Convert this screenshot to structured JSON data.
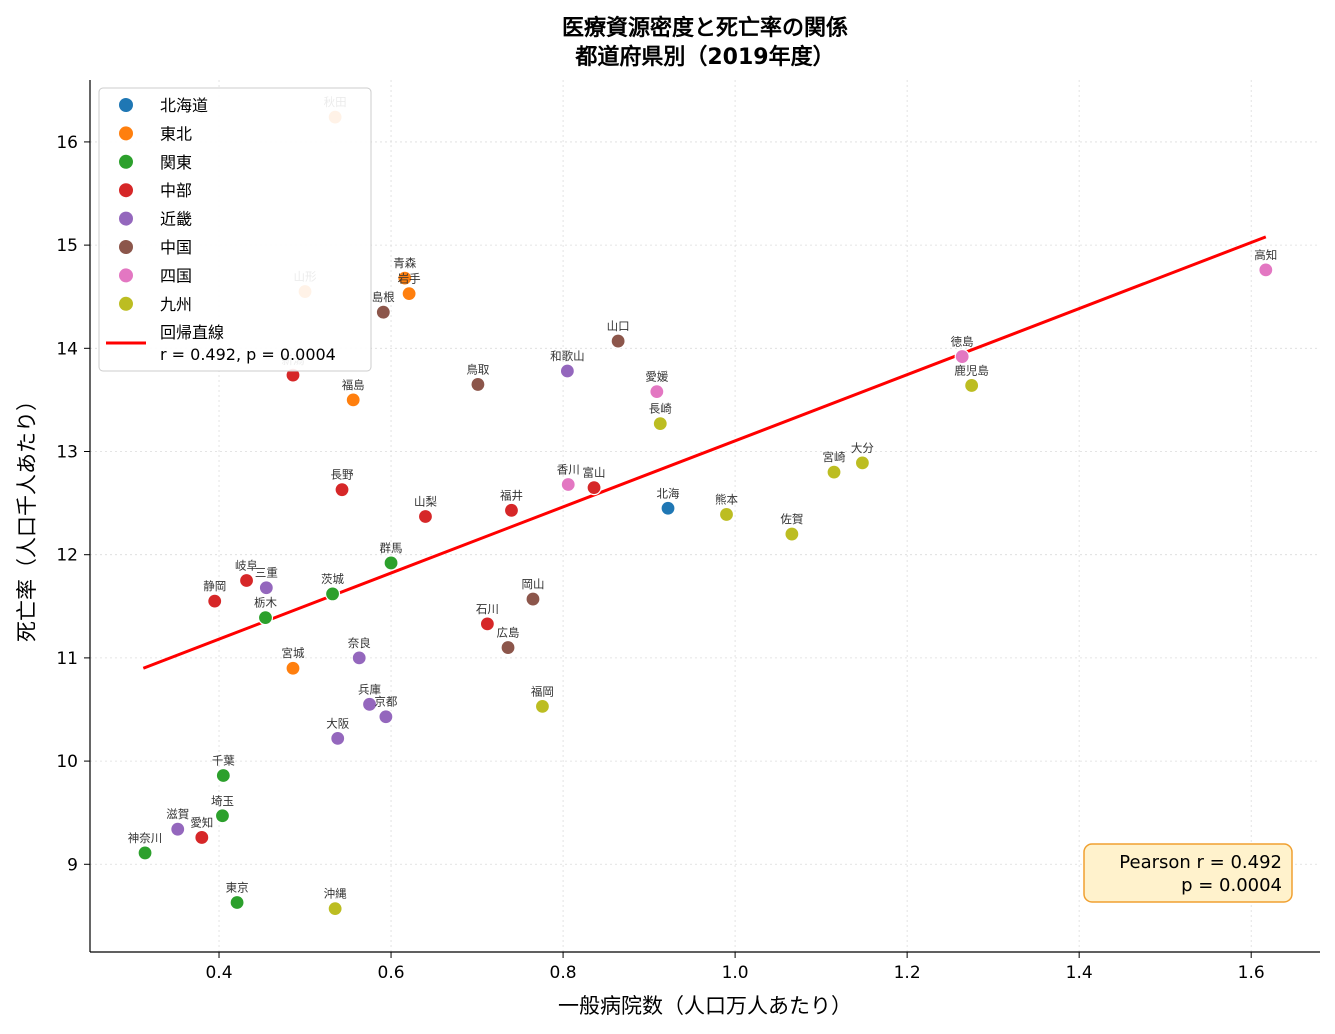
{
  "chart_data": {
    "type": "scatter",
    "title": [
      "医療資源密度と死亡率の関係",
      "都道府県別（2019年度）"
    ],
    "xlabel": "一般病院数（人口万人あたり）",
    "ylabel": "死亡率（人口千人あたり）",
    "xlim": [
      0.25,
      1.68
    ],
    "ylim": [
      8.15,
      16.6
    ],
    "xticks": [
      0.4,
      0.6,
      0.8,
      1.0,
      1.2,
      1.4,
      1.6
    ],
    "xtick_labels": [
      "0.4",
      "0.6",
      "0.8",
      "1.0",
      "1.2",
      "1.4",
      "1.6"
    ],
    "yticks": [
      9,
      10,
      11,
      12,
      13,
      14,
      15,
      16
    ],
    "ytick_labels": [
      "9",
      "10",
      "11",
      "12",
      "13",
      "14",
      "15",
      "16"
    ],
    "grid": true,
    "legend_position": "top-left",
    "colors": {
      "北海道": "#1f77b4",
      "東北": "#ff7f0e",
      "関東": "#2ca02c",
      "中部": "#d62728",
      "近畿": "#9467bd",
      "中国": "#8c564b",
      "四国": "#e377c2",
      "九州": "#bcbd22",
      "regression": "#ff0000"
    },
    "series": [
      {
        "name": "北海道",
        "points": [
          {
            "label": "北海",
            "x": 0.922,
            "y": 12.45
          }
        ]
      },
      {
        "name": "東北",
        "points": [
          {
            "label": "青森",
            "x": 0.616,
            "y": 14.68
          },
          {
            "label": "岩手",
            "x": 0.621,
            "y": 14.53
          },
          {
            "label": "宮城",
            "x": 0.486,
            "y": 10.9
          },
          {
            "label": "秋田",
            "x": 0.535,
            "y": 16.24
          },
          {
            "label": "山形",
            "x": 0.5,
            "y": 14.55
          },
          {
            "label": "福島",
            "x": 0.556,
            "y": 13.5
          }
        ]
      },
      {
        "name": "関東",
        "points": [
          {
            "label": "茨城",
            "x": 0.532,
            "y": 11.62
          },
          {
            "label": "栃木",
            "x": 0.454,
            "y": 11.39
          },
          {
            "label": "群馬",
            "x": 0.6,
            "y": 11.92
          },
          {
            "label": "埼玉",
            "x": 0.404,
            "y": 9.47
          },
          {
            "label": "千葉",
            "x": 0.405,
            "y": 9.86
          },
          {
            "label": "東京",
            "x": 0.421,
            "y": 8.63
          },
          {
            "label": "神奈川",
            "x": 0.314,
            "y": 9.11
          }
        ]
      },
      {
        "name": "中部",
        "points": [
          {
            "label": "新潟",
            "x": 0.486,
            "y": 13.74
          },
          {
            "label": "富山",
            "x": 0.836,
            "y": 12.65
          },
          {
            "label": "石川",
            "x": 0.712,
            "y": 11.33
          },
          {
            "label": "福井",
            "x": 0.74,
            "y": 12.43
          },
          {
            "label": "山梨",
            "x": 0.64,
            "y": 12.37
          },
          {
            "label": "長野",
            "x": 0.543,
            "y": 12.63
          },
          {
            "label": "岐阜",
            "x": 0.432,
            "y": 11.75
          },
          {
            "label": "静岡",
            "x": 0.395,
            "y": 11.55
          },
          {
            "label": "愛知",
            "x": 0.38,
            "y": 9.26
          }
        ]
      },
      {
        "name": "近畿",
        "points": [
          {
            "label": "三重",
            "x": 0.455,
            "y": 11.68
          },
          {
            "label": "滋賀",
            "x": 0.352,
            "y": 9.34
          },
          {
            "label": "京都",
            "x": 0.594,
            "y": 10.43
          },
          {
            "label": "大阪",
            "x": 0.538,
            "y": 10.22
          },
          {
            "label": "兵庫",
            "x": 0.575,
            "y": 10.55
          },
          {
            "label": "奈良",
            "x": 0.563,
            "y": 11.0
          },
          {
            "label": "和歌山",
            "x": 0.805,
            "y": 13.78
          }
        ]
      },
      {
        "name": "中国",
        "points": [
          {
            "label": "鳥取",
            "x": 0.701,
            "y": 13.65
          },
          {
            "label": "島根",
            "x": 0.591,
            "y": 14.35
          },
          {
            "label": "岡山",
            "x": 0.765,
            "y": 11.57
          },
          {
            "label": "広島",
            "x": 0.736,
            "y": 11.1
          },
          {
            "label": "山口",
            "x": 0.864,
            "y": 14.07
          }
        ]
      },
      {
        "name": "四国",
        "points": [
          {
            "label": "徳島",
            "x": 1.264,
            "y": 13.92
          },
          {
            "label": "香川",
            "x": 0.806,
            "y": 12.68
          },
          {
            "label": "愛媛",
            "x": 0.909,
            "y": 13.58
          },
          {
            "label": "高知",
            "x": 1.617,
            "y": 14.76
          }
        ]
      },
      {
        "name": "九州",
        "points": [
          {
            "label": "福岡",
            "x": 0.776,
            "y": 10.53
          },
          {
            "label": "佐賀",
            "x": 1.066,
            "y": 12.2
          },
          {
            "label": "長崎",
            "x": 0.913,
            "y": 13.27
          },
          {
            "label": "熊本",
            "x": 0.99,
            "y": 12.39
          },
          {
            "label": "大分",
            "x": 1.148,
            "y": 12.89
          },
          {
            "label": "宮崎",
            "x": 1.115,
            "y": 12.8
          },
          {
            "label": "鹿児島",
            "x": 1.275,
            "y": 13.64
          },
          {
            "label": "沖縄",
            "x": 0.535,
            "y": 8.57
          }
        ]
      }
    ],
    "regression": {
      "legend_label": [
        "回帰直線",
        "r = 0.492, p = 0.0004"
      ],
      "x": [
        0.312,
        1.617
      ],
      "y": [
        10.9,
        15.08
      ]
    },
    "stats_box": [
      "Pearson r = 0.492",
      "p = 0.0004"
    ]
  }
}
